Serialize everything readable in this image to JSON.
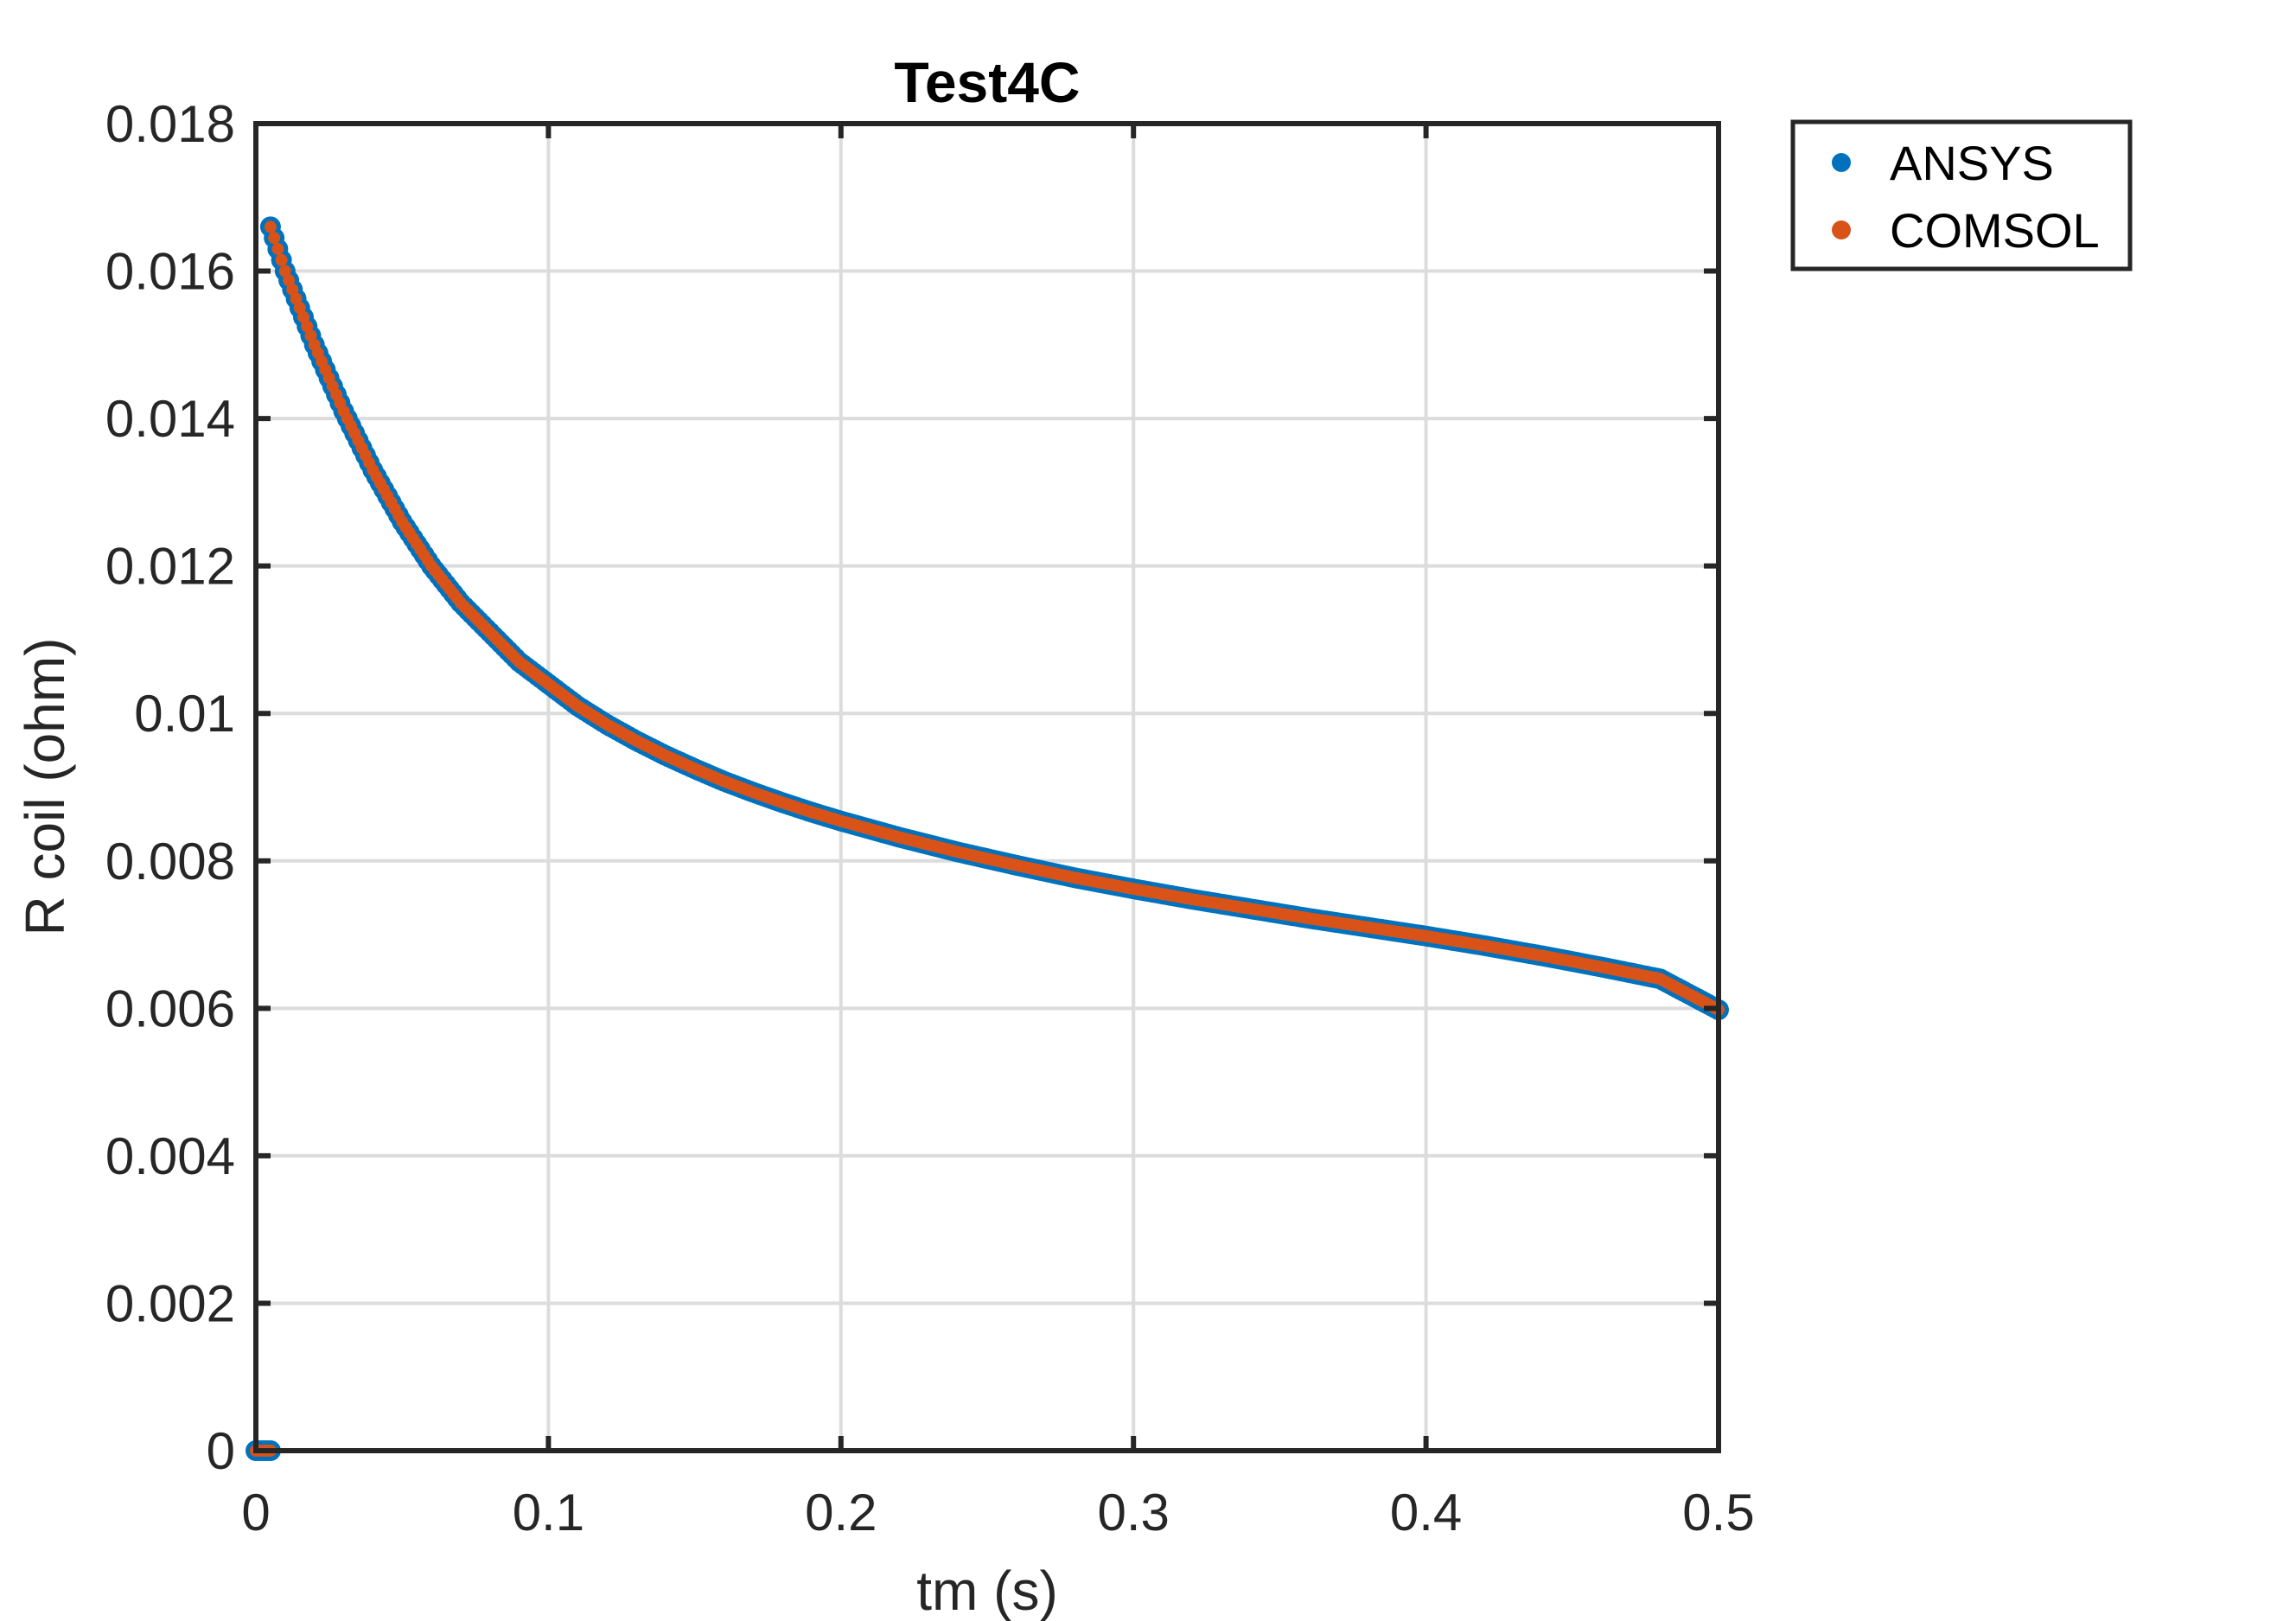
{
  "chart_data": {
    "type": "scatter",
    "title": "Test4C",
    "xlabel": "tm (s)",
    "ylabel": "R coil (ohm)",
    "xlim": [
      0,
      0.5
    ],
    "ylim": [
      0,
      0.018
    ],
    "xticks": [
      0,
      0.1,
      0.2,
      0.3,
      0.4,
      0.5
    ],
    "xtick_labels": [
      "0",
      "0.1",
      "0.2",
      "0.3",
      "0.4",
      "0.5"
    ],
    "yticks": [
      0,
      0.002,
      0.004,
      0.006,
      0.008,
      0.01,
      0.012,
      0.014,
      0.016,
      0.018
    ],
    "ytick_labels": [
      "0",
      "0.002",
      "0.004",
      "0.006",
      "0.008",
      "0.01",
      "0.012",
      "0.014",
      "0.016",
      "0.018"
    ],
    "grid": true,
    "legend_position": "outside-top-right",
    "series": [
      {
        "name": "ANSYS",
        "color": "#0072BD",
        "x": [
          0,
          0.001,
          0.002,
          0.003,
          0.004,
          0.005,
          0.005,
          0.01,
          0.02,
          0.03,
          0.04,
          0.05,
          0.06,
          0.07,
          0.08,
          0.09,
          0.1,
          0.11,
          0.12,
          0.13,
          0.14,
          0.15,
          0.16,
          0.17,
          0.18,
          0.19,
          0.2,
          0.22,
          0.24,
          0.26,
          0.28,
          0.3,
          0.32,
          0.34,
          0.36,
          0.38,
          0.4,
          0.42,
          0.44,
          0.46,
          0.48,
          0.5
        ],
        "y": [
          0,
          0,
          0,
          0,
          0,
          0,
          0.0166,
          0.016,
          0.015,
          0.0141,
          0.0133,
          0.0126,
          0.012,
          0.0115,
          0.0111,
          0.0107,
          0.0104,
          0.0101,
          0.00985,
          0.00963,
          0.00943,
          0.00925,
          0.00908,
          0.00893,
          0.00879,
          0.00866,
          0.00854,
          0.00832,
          0.00812,
          0.00794,
          0.00777,
          0.00762,
          0.00748,
          0.00735,
          0.00722,
          0.0071,
          0.00698,
          0.00685,
          0.00671,
          0.00656,
          0.0064,
          0.00598
        ]
      },
      {
        "name": "COMSOL",
        "color": "#D95319",
        "x": [
          0,
          0.001,
          0.002,
          0.003,
          0.004,
          0.005,
          0.005,
          0.01,
          0.02,
          0.03,
          0.04,
          0.05,
          0.06,
          0.07,
          0.08,
          0.09,
          0.1,
          0.11,
          0.12,
          0.13,
          0.14,
          0.15,
          0.16,
          0.17,
          0.18,
          0.19,
          0.2,
          0.22,
          0.24,
          0.26,
          0.28,
          0.3,
          0.32,
          0.34,
          0.36,
          0.38,
          0.4,
          0.42,
          0.44,
          0.46,
          0.48,
          0.5
        ],
        "y": [
          0,
          0,
          0,
          0,
          0,
          0,
          0.0166,
          0.016,
          0.015,
          0.0141,
          0.0133,
          0.0126,
          0.012,
          0.0115,
          0.0111,
          0.0107,
          0.0104,
          0.0101,
          0.00985,
          0.00963,
          0.00943,
          0.00925,
          0.00908,
          0.00893,
          0.00879,
          0.00866,
          0.00854,
          0.00832,
          0.00812,
          0.00794,
          0.00777,
          0.00762,
          0.00748,
          0.00735,
          0.00722,
          0.0071,
          0.00698,
          0.00685,
          0.00671,
          0.00656,
          0.0064,
          0.00598
        ]
      }
    ]
  }
}
